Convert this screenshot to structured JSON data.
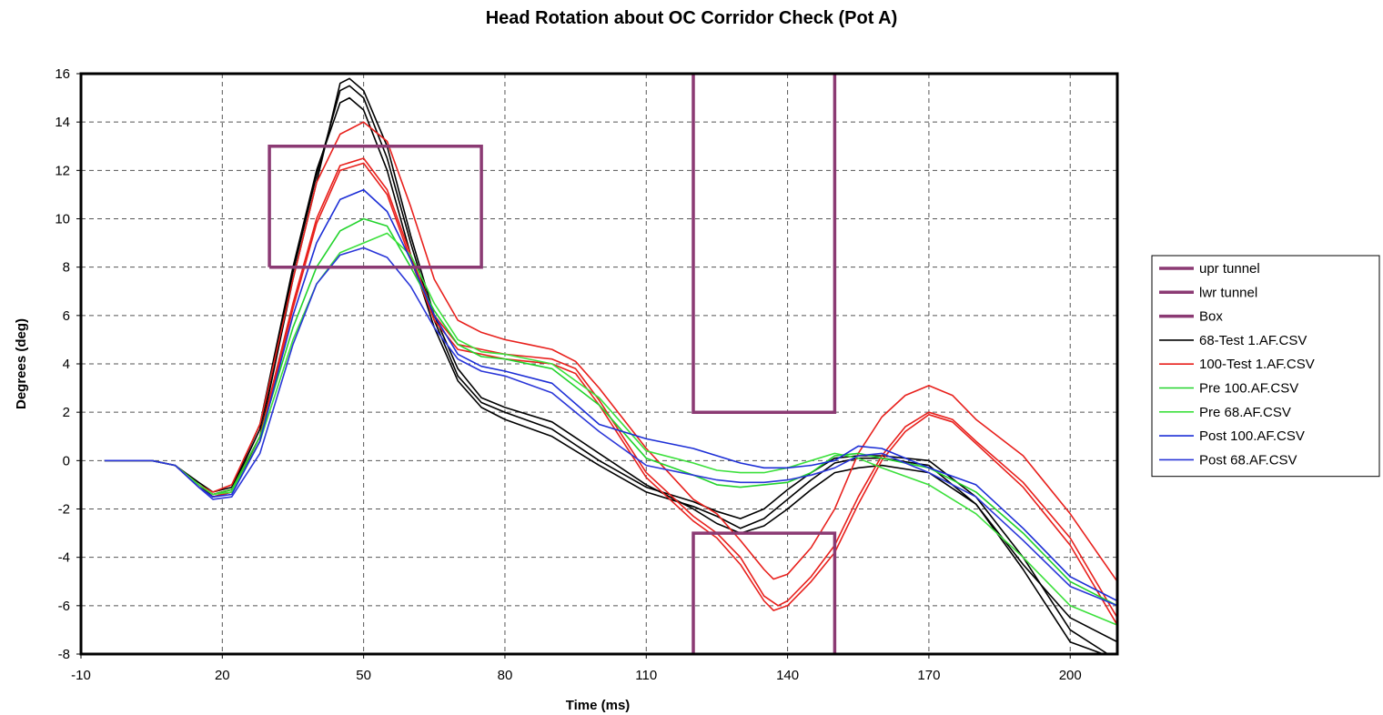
{
  "chart_data": {
    "type": "line",
    "title": "Head Rotation about OC Corridor Check (Pot A)",
    "xlabel": "Time (ms)",
    "ylabel": "Degrees (deg)",
    "xlim": [
      -10,
      210
    ],
    "ylim": [
      -8,
      16
    ],
    "xticks": [
      -10,
      20,
      50,
      80,
      110,
      140,
      170,
      200
    ],
    "yticks": [
      -8,
      -6,
      -4,
      -2,
      0,
      2,
      4,
      6,
      8,
      10,
      12,
      14,
      16
    ],
    "grid": true,
    "legend_position": "right",
    "corridors": [
      {
        "name": "upr tunnel",
        "color": "#8B3A73",
        "x": [
          120,
          120,
          150,
          150
        ],
        "y": [
          16,
          2,
          2,
          16
        ]
      },
      {
        "name": "lwr tunnel",
        "color": "#8B3A73",
        "x": [
          120,
          120,
          150,
          150
        ],
        "y": [
          -8,
          -3,
          -3,
          -8
        ]
      },
      {
        "name": "Box",
        "color": "#8B3A73",
        "x": [
          30,
          75,
          75,
          30,
          30
        ],
        "y": [
          8,
          8,
          13,
          13,
          8
        ]
      }
    ],
    "series": [
      {
        "name": "68-Test 1.AF.CSV",
        "color": "#000000",
        "curves": [
          {
            "x": [
              -5,
              0,
              5,
              10,
              15,
              18,
              22,
              28,
              35,
              40,
              45,
              47,
              50,
              55,
              60,
              65,
              70,
              75,
              80,
              90,
              100,
              110,
              120,
              125,
              130,
              135,
              140,
              145,
              150,
              155,
              160,
              170,
              180,
              190,
              200,
              207
            ],
            "y": [
              0,
              0,
              0,
              -0.2,
              -0.9,
              -1.3,
              -1.1,
              1.5,
              8,
              12,
              14.8,
              15,
              14.5,
              12,
              8.5,
              5.5,
              3.3,
              2.2,
              1.7,
              1,
              -0.2,
              -1.3,
              -1.9,
              -2.3,
              -2.8,
              -2.4,
              -1.6,
              -0.8,
              -0.1,
              0.1,
              0.1,
              -0.2,
              -1.8,
              -4.5,
              -7.5,
              -8
            ]
          },
          {
            "x": [
              -5,
              0,
              5,
              10,
              15,
              18,
              22,
              28,
              35,
              40,
              45,
              47,
              50,
              55,
              60,
              65,
              70,
              75,
              80,
              90,
              100,
              110,
              120,
              125,
              130,
              135,
              140,
              145,
              150,
              155,
              160,
              170,
              180,
              190,
              200,
              208
            ],
            "y": [
              0,
              0,
              0,
              -0.2,
              -1,
              -1.4,
              -1.2,
              1.3,
              7.8,
              11.8,
              15.3,
              15.5,
              15,
              12.5,
              9,
              5.8,
              3.5,
              2.4,
              2,
              1.3,
              0,
              -1.1,
              -1.7,
              -2.1,
              -2.4,
              -2,
              -1.2,
              -0.5,
              0.1,
              0.2,
              0.2,
              0,
              -1.5,
              -4,
              -7,
              -8
            ]
          },
          {
            "x": [
              -5,
              0,
              5,
              10,
              15,
              18,
              22,
              28,
              35,
              40,
              45,
              47,
              50,
              55,
              60,
              65,
              70,
              75,
              80,
              90,
              100,
              110,
              120,
              125,
              130,
              135,
              140,
              145,
              150,
              155,
              160,
              170,
              180,
              190,
              200,
              210
            ],
            "y": [
              0,
              0,
              0,
              -0.2,
              -1,
              -1.5,
              -1.3,
              1,
              7.5,
              11.5,
              15.6,
              15.8,
              15.3,
              13,
              9.3,
              6,
              3.8,
              2.6,
              2.2,
              1.6,
              0.3,
              -1,
              -2,
              -2.6,
              -3,
              -2.7,
              -2,
              -1.2,
              -0.5,
              -0.3,
              -0.2,
              -0.5,
              -1.8,
              -4.3,
              -6.5,
              -7.5
            ]
          }
        ]
      },
      {
        "name": "100-Test 1.AF.CSV",
        "color": "#E8201C",
        "curves": [
          {
            "x": [
              -5,
              0,
              5,
              10,
              15,
              18,
              22,
              28,
              35,
              40,
              45,
              50,
              55,
              60,
              65,
              70,
              75,
              80,
              85,
              90,
              95,
              100,
              110,
              120,
              125,
              130,
              135,
              138,
              140,
              145,
              150,
              155,
              160,
              165,
              170,
              175,
              180,
              190,
              200,
              210
            ],
            "y": [
              0,
              0,
              0,
              -0.2,
              -1,
              -1.4,
              -1.2,
              1,
              6.5,
              10,
              12.2,
              12.5,
              11.2,
              8.5,
              6,
              4.8,
              4.6,
              4.4,
              4.3,
              4.2,
              3.8,
              2.5,
              -0.5,
              -2.3,
              -3,
              -4,
              -5.6,
              -6,
              -5.8,
              -4.8,
              -3.5,
              -1.5,
              0.2,
              1.4,
              2,
              1.7,
              0.8,
              -0.9,
              -3.2,
              -6.5
            ]
          },
          {
            "x": [
              -5,
              0,
              5,
              10,
              15,
              18,
              22,
              28,
              35,
              40,
              45,
              50,
              55,
              60,
              65,
              70,
              75,
              80,
              85,
              90,
              95,
              100,
              110,
              120,
              125,
              130,
              135,
              137,
              140,
              145,
              150,
              155,
              160,
              165,
              170,
              175,
              180,
              190,
              200,
              210
            ],
            "y": [
              0,
              0,
              0,
              -0.2,
              -1.1,
              -1.5,
              -1.3,
              0.8,
              6.3,
              9.8,
              12,
              12.3,
              11,
              8.3,
              5.8,
              4.6,
              4.4,
              4.2,
              4.1,
              4,
              3.6,
              2.3,
              -0.7,
              -2.5,
              -3.2,
              -4.3,
              -5.8,
              -6.2,
              -6,
              -5,
              -3.8,
              -1.8,
              0,
              1.2,
              1.9,
              1.6,
              0.7,
              -1.1,
              -3.5,
              -6.8
            ]
          },
          {
            "x": [
              -5,
              0,
              5,
              10,
              15,
              18,
              22,
              28,
              35,
              40,
              45,
              50,
              55,
              60,
              65,
              70,
              75,
              80,
              85,
              90,
              95,
              100,
              110,
              120,
              125,
              130,
              135,
              137,
              140,
              145,
              150,
              155,
              160,
              165,
              170,
              175,
              180,
              190,
              200,
              210
            ],
            "y": [
              0,
              0,
              0,
              -0.2,
              -1,
              -1.3,
              -1,
              1.5,
              7.5,
              11.5,
              13.5,
              14,
              13.2,
              10.5,
              7.5,
              5.8,
              5.3,
              5,
              4.8,
              4.6,
              4.1,
              3,
              0.5,
              -1.6,
              -2.2,
              -3.3,
              -4.5,
              -4.9,
              -4.7,
              -3.6,
              -2,
              0.3,
              1.8,
              2.7,
              3.1,
              2.7,
              1.7,
              0.2,
              -2.2,
              -5
            ]
          }
        ]
      },
      {
        "name": "Pre 100.AF.CSV",
        "color": "#22D32C",
        "curves": [
          {
            "x": [
              -5,
              0,
              5,
              10,
              15,
              18,
              22,
              28,
              35,
              40,
              45,
              50,
              55,
              60,
              65,
              70,
              75,
              80,
              90,
              100,
              110,
              120,
              125,
              130,
              135,
              140,
              145,
              150,
              155,
              160,
              170,
              180,
              190,
              200,
              210
            ],
            "y": [
              0,
              0,
              0,
              -0.2,
              -1,
              -1.4,
              -1.2,
              1,
              5.5,
              8,
              9.5,
              10,
              9.7,
              8,
              6.2,
              4.8,
              4.3,
              4.2,
              3.8,
              2.3,
              0.1,
              -0.6,
              -1,
              -1.1,
              -1,
              -0.9,
              -0.5,
              0.2,
              0.3,
              0.1,
              -0.3,
              -1.3,
              -3,
              -5,
              -6
            ]
          }
        ]
      },
      {
        "name": "Pre 68.AF.CSV",
        "color": "#3CE03C",
        "curves": [
          {
            "x": [
              -5,
              0,
              5,
              10,
              15,
              18,
              22,
              28,
              35,
              40,
              45,
              50,
              55,
              60,
              65,
              70,
              75,
              80,
              90,
              100,
              110,
              120,
              125,
              130,
              135,
              140,
              145,
              150,
              155,
              160,
              170,
              180,
              190,
              200,
              210
            ],
            "y": [
              0,
              0,
              0,
              -0.2,
              -1,
              -1.4,
              -1.3,
              0.8,
              5,
              7.3,
              8.6,
              9,
              9.4,
              8.5,
              6.5,
              5,
              4.5,
              4.4,
              4,
              2.6,
              0.4,
              -0.1,
              -0.4,
              -0.5,
              -0.5,
              -0.3,
              0,
              0.3,
              0.1,
              -0.3,
              -1,
              -2.2,
              -4,
              -6,
              -6.8
            ]
          }
        ]
      },
      {
        "name": "Post 100.AF.CSV",
        "color": "#1C2ED6",
        "curves": [
          {
            "x": [
              -5,
              0,
              5,
              10,
              15,
              18,
              22,
              28,
              35,
              40,
              45,
              50,
              55,
              60,
              65,
              70,
              75,
              80,
              90,
              100,
              110,
              120,
              125,
              130,
              135,
              140,
              145,
              150,
              155,
              160,
              170,
              180,
              190,
              200,
              210
            ],
            "y": [
              0,
              0,
              0,
              -0.2,
              -1.1,
              -1.5,
              -1.4,
              0.8,
              6,
              9,
              10.8,
              11.2,
              10.3,
              8.3,
              6,
              4.4,
              3.9,
              3.7,
              3.2,
              1.5,
              0.9,
              0.5,
              0.2,
              -0.1,
              -0.3,
              -0.3,
              -0.2,
              0,
              0.6,
              0.5,
              -0.3,
              -1,
              -2.8,
              -4.8,
              -5.8
            ]
          }
        ]
      },
      {
        "name": "Post 68.AF.CSV",
        "color": "#2A36D8",
        "curves": [
          {
            "x": [
              -5,
              0,
              5,
              10,
              15,
              18,
              22,
              28,
              35,
              40,
              45,
              50,
              55,
              60,
              65,
              70,
              75,
              80,
              90,
              100,
              110,
              120,
              125,
              130,
              135,
              140,
              145,
              150,
              155,
              160,
              170,
              180,
              190,
              200,
              210
            ],
            "y": [
              0,
              0,
              0,
              -0.2,
              -1.1,
              -1.6,
              -1.5,
              0.3,
              4.8,
              7.3,
              8.5,
              8.8,
              8.4,
              7.2,
              5.5,
              4.2,
              3.7,
              3.5,
              2.8,
              1.2,
              -0.2,
              -0.6,
              -0.8,
              -0.9,
              -0.9,
              -0.8,
              -0.6,
              -0.3,
              0.2,
              0.3,
              -0.5,
              -1.5,
              -3.3,
              -5.2,
              -6
            ]
          }
        ]
      }
    ]
  }
}
